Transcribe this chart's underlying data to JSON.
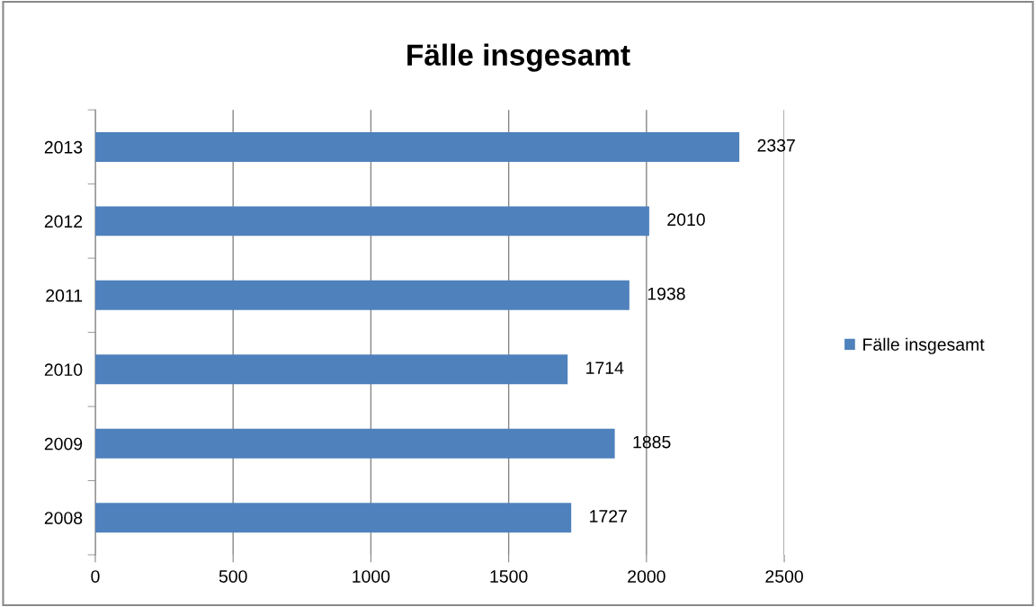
{
  "chart_data": {
    "type": "bar",
    "orientation": "horizontal",
    "title": "Fälle insgesamt",
    "categories": [
      "2013",
      "2012",
      "2011",
      "2010",
      "2009",
      "2008"
    ],
    "series": [
      {
        "name": "Fälle insgesamt",
        "color": "#4f81bd",
        "values": [
          2337,
          2010,
          1938,
          1714,
          1885,
          1727
        ]
      }
    ],
    "xlim": [
      0,
      2500
    ],
    "xticks": [
      0,
      500,
      1000,
      1500,
      2000,
      2500
    ],
    "grid": "x",
    "legend": "right",
    "data_labels": true
  }
}
